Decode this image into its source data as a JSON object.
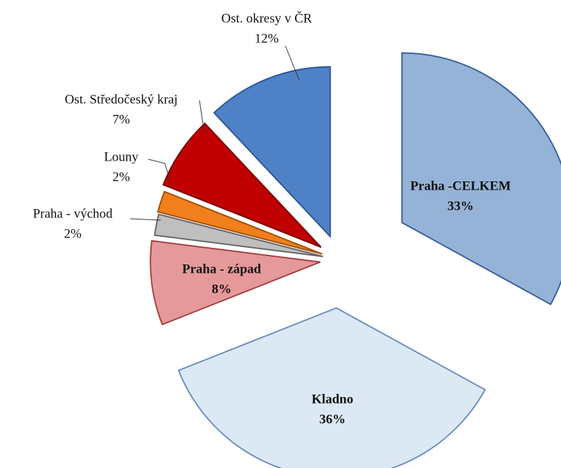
{
  "chart_data": {
    "type": "pie",
    "categories": [
      "Praha -CELKEM",
      "Kladno",
      "Praha - západ",
      "Praha - východ",
      "Louny",
      "Ost. Středočeský kraj",
      "Ost. okresy v ČR"
    ],
    "values": [
      33,
      36,
      8,
      2,
      2,
      7,
      12
    ],
    "value_labels": [
      "33%",
      "36%",
      "8%",
      "2%",
      "2%",
      "7%",
      "12%"
    ],
    "colors": [
      "#95b3d7",
      "#dce9f4",
      "#e6999a",
      "#bfbfbf",
      "#f07f1c",
      "#c00000",
      "#4f81c7"
    ]
  }
}
